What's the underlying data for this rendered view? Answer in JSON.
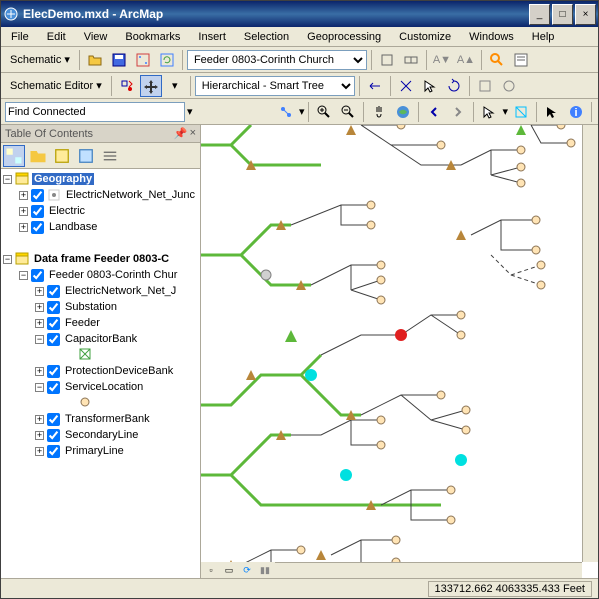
{
  "window": {
    "title": "ElecDemo.mxd - ArcMap"
  },
  "menu": [
    "File",
    "Edit",
    "View",
    "Bookmarks",
    "Insert",
    "Selection",
    "Geoprocessing",
    "Customize",
    "Windows",
    "Help"
  ],
  "toolbar1": {
    "schematic_label": "Schematic",
    "diagram_dropdown": "Feeder 0803-Corinth Church"
  },
  "toolbar2": {
    "editor_label": "Schematic Editor",
    "layout_dropdown": "Hierarchical - Smart Tree"
  },
  "toolbar3": {
    "find_value": "Find Connected"
  },
  "toc": {
    "title": "Table Of Contents",
    "items": [
      {
        "level": 0,
        "exp": "-",
        "type": "frame",
        "label": "Geography",
        "bold": true,
        "selected": true
      },
      {
        "level": 1,
        "exp": "+",
        "check": true,
        "icon": "point",
        "label": "ElectricNetwork_Net_Junc"
      },
      {
        "level": 1,
        "exp": "+",
        "check": true,
        "label": "Electric"
      },
      {
        "level": 1,
        "exp": "+",
        "check": true,
        "label": "Landbase"
      },
      {
        "level": 0,
        "blank": true
      },
      {
        "level": 0,
        "exp": "-",
        "type": "frame",
        "label": "Data frame Feeder 0803-C",
        "bold": true
      },
      {
        "level": 1,
        "exp": "-",
        "check": true,
        "label": "Feeder 0803-Corinth Chur"
      },
      {
        "level": 2,
        "exp": "+",
        "check": true,
        "label": "ElectricNetwork_Net_J"
      },
      {
        "level": 2,
        "exp": "+",
        "check": true,
        "label": "Substation"
      },
      {
        "level": 2,
        "exp": "+",
        "check": true,
        "label": "Feeder"
      },
      {
        "level": 2,
        "exp": "-",
        "check": true,
        "label": "CapacitorBank"
      },
      {
        "level": 3,
        "symbol": "cap"
      },
      {
        "level": 2,
        "exp": "+",
        "check": true,
        "label": "ProtectionDeviceBank"
      },
      {
        "level": 2,
        "exp": "-",
        "check": true,
        "label": "ServiceLocation"
      },
      {
        "level": 3,
        "symbol": "svc"
      },
      {
        "level": 2,
        "exp": "+",
        "check": true,
        "label": "TransformerBank"
      },
      {
        "level": 2,
        "exp": "+",
        "check": true,
        "label": "SecondaryLine"
      },
      {
        "level": 2,
        "exp": "+",
        "check": true,
        "label": "PrimaryLine"
      }
    ]
  },
  "status": {
    "coords": "133712.662 4063335.433 Feet"
  },
  "colors": {
    "primary_line": "#5db83a",
    "secondary_line": "#404040",
    "triangle": "#b8863a",
    "service": "#ffe4b5",
    "service_border": "#8b7355",
    "red_node": "#e02020",
    "cyan_node": "#00e0e0",
    "gray_node": "#a0a0a0"
  }
}
